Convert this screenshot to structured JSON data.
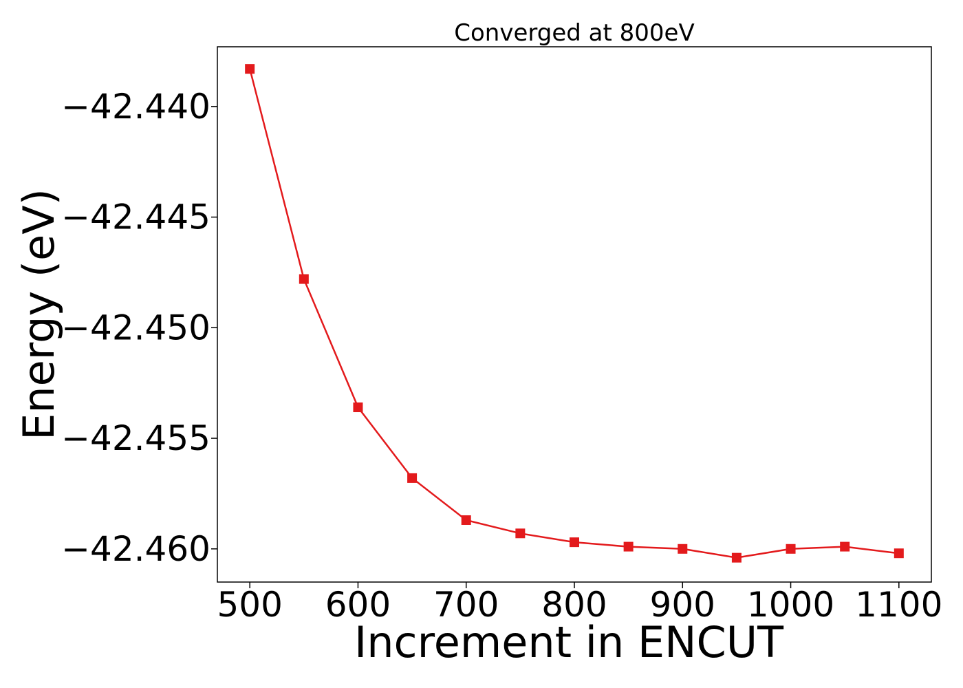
{
  "chart_data": {
    "type": "line",
    "title": "Converged at 800eV",
    "xlabel": "Increment in ENCUT",
    "ylabel": "Energy (eV)",
    "xlim": [
      470,
      1130
    ],
    "ylim": [
      -42.4615,
      -42.4373
    ],
    "xticks": [
      500,
      600,
      700,
      800,
      900,
      1000,
      1100
    ],
    "xtick_labels": [
      "500",
      "600",
      "700",
      "800",
      "900",
      "1000",
      "1100"
    ],
    "yticks": [
      -42.44,
      -42.445,
      -42.45,
      -42.455,
      -42.46
    ],
    "ytick_labels": [
      "−42.440",
      "−42.445",
      "−42.450",
      "−42.455",
      "−42.460"
    ],
    "grid": false,
    "series": [
      {
        "color": "#e31a1c",
        "marker": "square",
        "x": [
          500,
          550,
          600,
          650,
          700,
          750,
          800,
          850,
          900,
          950,
          1000,
          1050,
          1100
        ],
        "y": [
          -42.4383,
          -42.4478,
          -42.4536,
          -42.4568,
          -42.4587,
          -42.4593,
          -42.4597,
          -42.4599,
          -42.46,
          -42.4604,
          -42.46,
          -42.4599,
          -42.4602
        ]
      }
    ]
  }
}
